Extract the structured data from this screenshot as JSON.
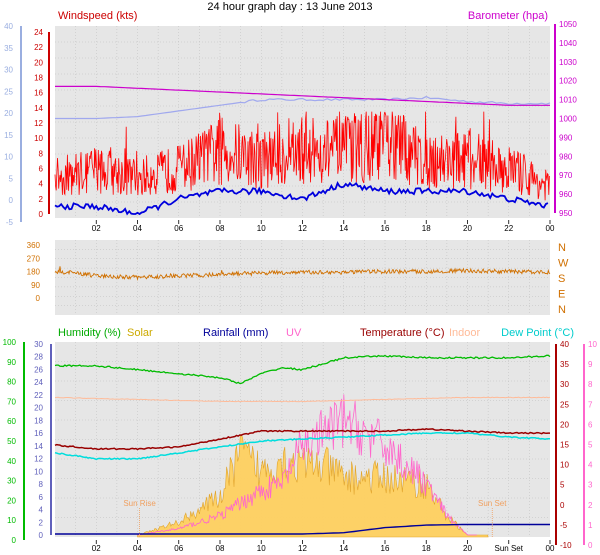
{
  "title": "24 hour graph day : 13 June 2013",
  "x_tick_labels": [
    "02",
    "04",
    "06",
    "08",
    "10",
    "12",
    "14",
    "16",
    "18",
    "20",
    "22",
    "00"
  ],
  "x_tick_labels_bottom": [
    "02",
    "04",
    "06",
    "08",
    "10",
    "12",
    "14",
    "16",
    "18",
    "20",
    "Sun Set",
    "00"
  ],
  "colors": {
    "background": "#ffffff",
    "plot_bg": "#e6e6e6",
    "wind_axis": "#9aaee0",
    "windspeed": "#ff0000",
    "windavg": "#0000dd",
    "barometer": "#cc00cc",
    "barometer_light": "#a0a8ee",
    "direction": "#d07000",
    "humidity": "#00bb00",
    "solar": "#ddbb00",
    "solar_fill": "#ffd060",
    "rainfall": "#000099",
    "uv": "#ff66cc",
    "temperature": "#990000",
    "indoor": "#ffbb99",
    "dewpoint": "#00dddd",
    "sun_marker": "#f0a060"
  },
  "chart_data": [
    {
      "type": "line",
      "panel": "wind_barometer",
      "title": "Windspeed (kts)",
      "right_title": "Barometer (hpa)",
      "left_axis_outer": {
        "ticks": [
          40,
          35,
          30,
          25,
          20,
          15,
          10,
          5,
          0,
          -5
        ]
      },
      "left_axis_inner": {
        "ticks": [
          24,
          22,
          20,
          18,
          16,
          14,
          12,
          10,
          8,
          6,
          4,
          2,
          0
        ]
      },
      "right_axis": {
        "ticks": [
          1050,
          1040,
          1030,
          1020,
          1010,
          1000,
          990,
          980,
          970,
          960,
          950
        ]
      },
      "x_hours": [
        0,
        24
      ],
      "series": [
        {
          "name": "Windspeed (kts)",
          "x": [
            0,
            2,
            4,
            6,
            8,
            10,
            12,
            14,
            16,
            18,
            20,
            22,
            24
          ],
          "y": [
            4,
            5,
            4,
            5,
            7,
            6,
            7,
            7,
            8,
            6,
            6,
            5,
            3
          ]
        },
        {
          "x": [
            0,
            2,
            4,
            6,
            8,
            10,
            12,
            14,
            16,
            18,
            20,
            22,
            24
          ],
          "y": [
            1,
            1,
            0,
            2,
            3,
            3,
            2,
            4,
            3,
            3,
            3,
            2,
            1
          ]
        },
        {
          "name": "Barometer (hpa)",
          "x": [
            0,
            2,
            4,
            6,
            8,
            10,
            12,
            14,
            16,
            18,
            20,
            22,
            24
          ],
          "y": [
            1017,
            1017,
            1016,
            1015,
            1014,
            1013,
            1012,
            1011,
            1010,
            1009,
            1008,
            1007,
            1007
          ]
        },
        {
          "x": [
            0,
            2,
            4,
            6,
            8,
            10,
            12,
            14,
            16,
            18,
            20,
            22,
            24
          ],
          "y": [
            1000,
            1000,
            1001,
            1004,
            1007,
            1010,
            1010,
            1010,
            1010,
            1011,
            1009,
            1008,
            1008
          ]
        }
      ]
    },
    {
      "type": "line",
      "panel": "direction",
      "left_axis": {
        "ticks": [
          360,
          270,
          180,
          90,
          0
        ]
      },
      "right_labels": [
        "N",
        "W",
        "S",
        "E",
        "N"
      ],
      "series": [
        {
          "x": [
            0,
            1,
            2,
            4,
            6,
            8,
            10,
            12,
            14,
            16,
            18,
            20,
            22,
            24
          ],
          "y": [
            180,
            170,
            150,
            140,
            150,
            160,
            170,
            175,
            175,
            180,
            180,
            185,
            180,
            175
          ]
        }
      ]
    },
    {
      "type": "line",
      "panel": "humidity_temperature",
      "legend": [
        "Humidity (%)",
        "Solar",
        "Rainfall (mm)",
        "UV",
        "Temperature (°C)",
        "Indoor",
        "Dew Point (°C)"
      ],
      "left_axis_outer": {
        "ticks": [
          100,
          90,
          80,
          70,
          60,
          50,
          40,
          30,
          20,
          10,
          0
        ]
      },
      "left_axis_inner": {
        "ticks": [
          30,
          28,
          26,
          24,
          22,
          20,
          18,
          16,
          14,
          12,
          10,
          8,
          6,
          4,
          2,
          0
        ]
      },
      "right_axis_inner": {
        "ticks": [
          40,
          35,
          30,
          25,
          20,
          15,
          10,
          5,
          0,
          -5,
          -10
        ]
      },
      "right_axis_outer": {
        "ticks": [
          10,
          9,
          8,
          7,
          6,
          5,
          4,
          3,
          2,
          1,
          0
        ]
      },
      "annotations": [
        "Sun Rise",
        "Sun Set"
      ],
      "series": [
        {
          "name": "Humidity (%)",
          "x": [
            0,
            2,
            4,
            6,
            8,
            9,
            10,
            11,
            12,
            14,
            16,
            18,
            20,
            22,
            24
          ],
          "y": [
            88,
            88,
            86,
            84,
            82,
            79,
            84,
            87,
            86,
            92,
            93,
            92,
            92,
            92,
            93
          ]
        },
        {
          "name": "Indoor",
          "x": [
            0,
            4,
            8,
            12,
            16,
            20,
            24
          ],
          "y": [
            72,
            71,
            70,
            70,
            71,
            72,
            72
          ]
        },
        {
          "name": "Temperature (°C)",
          "x": [
            0,
            2,
            4,
            6,
            8,
            10,
            12,
            14,
            16,
            18,
            20,
            22,
            24
          ],
          "y": [
            48,
            46,
            46,
            47,
            51,
            55,
            55,
            55,
            55,
            56,
            55,
            54,
            54
          ]
        },
        {
          "name": "Dew Point (°C)",
          "x": [
            0,
            2,
            4,
            6,
            8,
            10,
            12,
            14,
            16,
            18,
            20,
            22,
            24
          ],
          "y": [
            44,
            41,
            41,
            44,
            47,
            50,
            51,
            52,
            53,
            54,
            54,
            52,
            51
          ]
        },
        {
          "name": "Solar",
          "x": [
            4,
            6,
            8,
            9,
            10,
            11,
            12,
            13,
            14,
            16,
            18,
            19,
            20,
            21
          ],
          "y": [
            0,
            2,
            6,
            13,
            10,
            12,
            11,
            11,
            9,
            9,
            8,
            3,
            0,
            0
          ]
        },
        {
          "name": "UV",
          "x": [
            4,
            6,
            8,
            10,
            11,
            12,
            13,
            14,
            16,
            18,
            19,
            20
          ],
          "y": [
            0,
            1,
            3,
            7,
            8,
            14,
            16,
            18,
            14,
            8,
            3,
            0
          ]
        },
        {
          "name": "Rainfall (mm)",
          "x": [
            0,
            12,
            14,
            16,
            17,
            18,
            20,
            24
          ],
          "y": [
            0,
            0,
            0.2,
            1,
            1.2,
            1.4,
            1.5,
            1.5
          ]
        }
      ]
    }
  ]
}
